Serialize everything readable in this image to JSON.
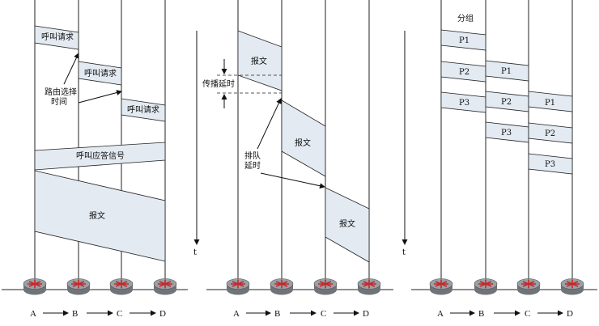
{
  "colors": {
    "band_fill": "#e3eaf2",
    "router_fill": "#9aa0a6",
    "router_mark": "#c62828"
  },
  "panel1": {
    "call_req1": "呼叫请求",
    "call_req2": "呼叫请求",
    "call_req3": "呼叫请求",
    "routing_line1": "路由选择",
    "routing_line2": "时间",
    "answer": "呼叫应答信号",
    "message": "报文"
  },
  "panel2": {
    "msg1": "报文",
    "msg2": "报文",
    "msg3": "报文",
    "prop_delay": "传播延时",
    "queue_line1": "排队",
    "queue_line2": "延时",
    "time_label": "t"
  },
  "panel3": {
    "packets_title": "分组",
    "a_p1": "P1",
    "a_p2": "P2",
    "a_p3": "P3",
    "b_p1": "P1",
    "b_p2": "P2",
    "b_p3": "P3",
    "c_p1": "P1",
    "c_p2": "P2",
    "c_p3": "P3",
    "time_label": "t"
  },
  "nodes": [
    "A",
    "B",
    "C",
    "D"
  ],
  "router_icon": "router-icon"
}
